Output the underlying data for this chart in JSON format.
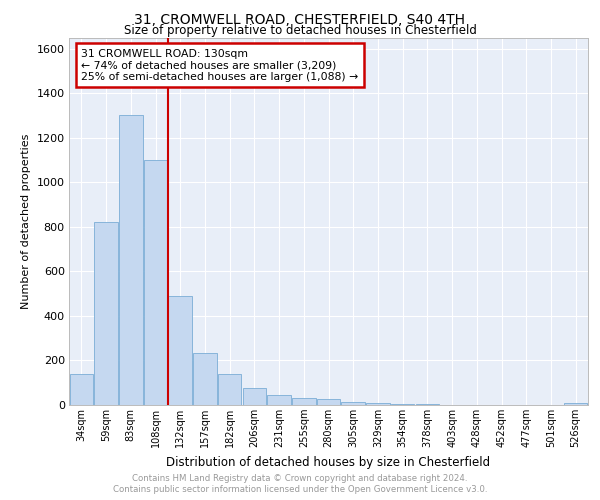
{
  "title_line1": "31, CROMWELL ROAD, CHESTERFIELD, S40 4TH",
  "title_line2": "Size of property relative to detached houses in Chesterfield",
  "xlabel": "Distribution of detached houses by size in Chesterfield",
  "ylabel": "Number of detached properties",
  "footer_line1": "Contains HM Land Registry data © Crown copyright and database right 2024.",
  "footer_line2": "Contains public sector information licensed under the Open Government Licence v3.0.",
  "annotation_line1": "31 CROMWELL ROAD: 130sqm",
  "annotation_line2": "← 74% of detached houses are smaller (3,209)",
  "annotation_line3": "25% of semi-detached houses are larger (1,088) →",
  "bar_labels": [
    "34sqm",
    "59sqm",
    "83sqm",
    "108sqm",
    "132sqm",
    "157sqm",
    "182sqm",
    "206sqm",
    "231sqm",
    "255sqm",
    "280sqm",
    "305sqm",
    "329sqm",
    "354sqm",
    "378sqm",
    "403sqm",
    "428sqm",
    "452sqm",
    "477sqm",
    "501sqm",
    "526sqm"
  ],
  "bar_values": [
    140,
    820,
    1300,
    1100,
    490,
    235,
    140,
    75,
    47,
    30,
    28,
    15,
    8,
    5,
    3,
    2,
    2,
    1,
    1,
    0,
    10
  ],
  "bar_color": "#c5d8f0",
  "bar_edgecolor": "#7aadd6",
  "vline_color": "#cc0000",
  "ylim": [
    0,
    1650
  ],
  "yticks": [
    0,
    200,
    400,
    600,
    800,
    1000,
    1200,
    1400,
    1600
  ],
  "bg_color": "#e8eef8",
  "grid_color": "#ffffff",
  "annotation_box_color": "#cc0000",
  "vline_position": 3.5
}
